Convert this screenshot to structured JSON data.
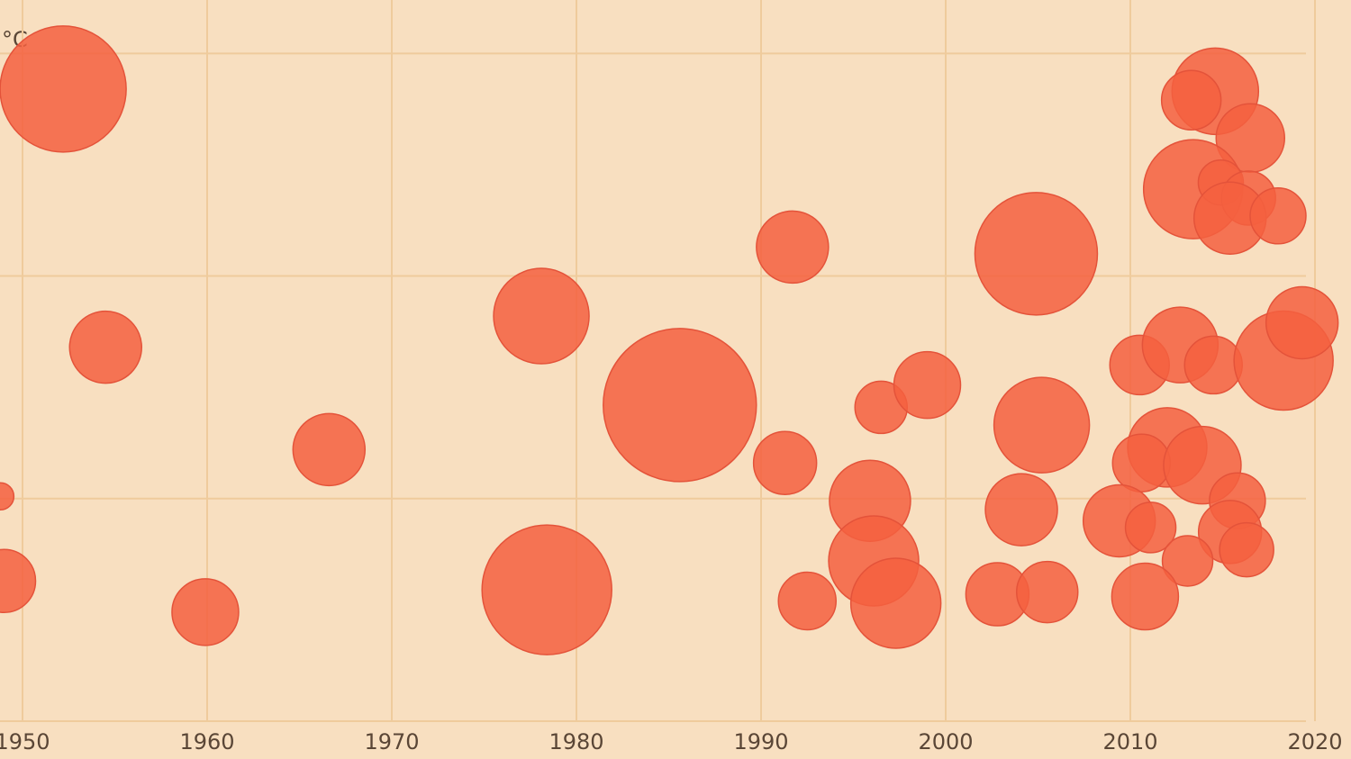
{
  "chart_data": {
    "type": "bubble",
    "y_label": "°C",
    "x": [
      1952.2,
      1954.5,
      1966.6,
      1959.9,
      1978.1,
      1978.4,
      1985.6,
      1991.7,
      1991.3,
      1992.5,
      1996.5,
      1999.0,
      1995.9,
      1996.1,
      1997.3,
      2004.9,
      2005.2,
      2004.1,
      2002.8,
      2005.5,
      2014.6,
      2013.3,
      2016.5,
      2013.4,
      2014.9,
      2016.4,
      2015.4,
      2018.0,
      2010.5,
      2012.7,
      2014.5,
      2018.3,
      2019.3,
      2012.0,
      2010.6,
      2013.9,
      2009.4,
      2011.1,
      2015.8,
      2015.4,
      2016.3,
      2013.1,
      2010.8,
      1949.0,
      1948.8
    ],
    "values": [
      2.84,
      1.68,
      1.22,
      0.49,
      1.82,
      0.59,
      1.42,
      2.13,
      1.16,
      0.54,
      1.41,
      1.51,
      0.99,
      0.72,
      0.53,
      2.1,
      1.33,
      0.95,
      0.57,
      0.58,
      2.83,
      2.79,
      2.62,
      2.39,
      2.42,
      2.35,
      2.26,
      2.27,
      1.6,
      1.69,
      1.6,
      1.62,
      1.79,
      1.23,
      1.16,
      1.15,
      0.9,
      0.87,
      0.99,
      0.85,
      0.77,
      0.72,
      0.56,
      0.63,
      1.01
    ],
    "sizes": [
      70,
      40,
      40,
      37,
      53,
      72,
      85,
      40,
      35,
      32,
      29,
      37,
      45,
      50,
      50,
      68,
      53,
      40,
      35,
      34,
      48,
      33,
      38,
      55,
      25,
      30,
      40,
      31,
      33,
      42,
      32,
      55,
      40,
      44,
      32,
      43,
      40,
      28,
      31,
      35,
      30,
      28,
      37,
      35,
      15
    ],
    "color": "#f4603f",
    "xlim": [
      1949,
      2022
    ],
    "xticks": [
      1950,
      1960,
      1970,
      1980,
      1990,
      2000,
      2010,
      2020
    ],
    "ylim": [
      -0.17,
      3.24
    ],
    "yticks": [
      0,
      1,
      2,
      3
    ],
    "grid": true
  }
}
